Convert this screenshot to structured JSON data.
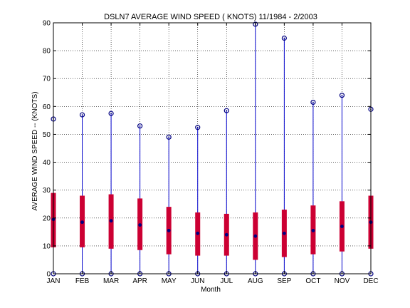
{
  "chart_data": {
    "type": "box",
    "title": "DSLN7  AVERAGE WIND SPEED ( KNOTS) 11/1984 - 2/2003",
    "xlabel": "Month",
    "ylabel": "AVERAGE WIND SPEED -- (KNOTS)",
    "ylim": [
      0,
      90
    ],
    "yticks": [
      0,
      10,
      20,
      30,
      40,
      50,
      60,
      70,
      80,
      90
    ],
    "grid": true,
    "categories": [
      "JAN",
      "FEB",
      "MAR",
      "APR",
      "MAY",
      "JUN",
      "JUL",
      "AUG",
      "SEP",
      "OCT",
      "NOV",
      "DEC"
    ],
    "series": [
      {
        "min": [
          0,
          0,
          0,
          0,
          0,
          0,
          0,
          0,
          0,
          0,
          0,
          0
        ]
      },
      {
        "q1": [
          9.5,
          9.5,
          9,
          8.5,
          7,
          6.5,
          6.5,
          5,
          6,
          7,
          8,
          9
        ]
      },
      {
        "median": [
          19.5,
          18.5,
          19,
          17.5,
          15.5,
          14.5,
          14,
          13.5,
          14.5,
          15.5,
          17,
          18.5
        ]
      },
      {
        "q3": [
          29,
          28,
          28.5,
          27,
          24,
          22,
          21.5,
          22,
          23,
          24.5,
          26,
          28
        ]
      },
      {
        "max": [
          55.5,
          57,
          57.5,
          53,
          49,
          52.5,
          58.5,
          89.5,
          84.5,
          61.5,
          64,
          59
        ]
      }
    ],
    "colors": {
      "whisker": "#0000cc",
      "box": "#cc0033",
      "marker": "#000080",
      "grid": "#000000"
    }
  }
}
